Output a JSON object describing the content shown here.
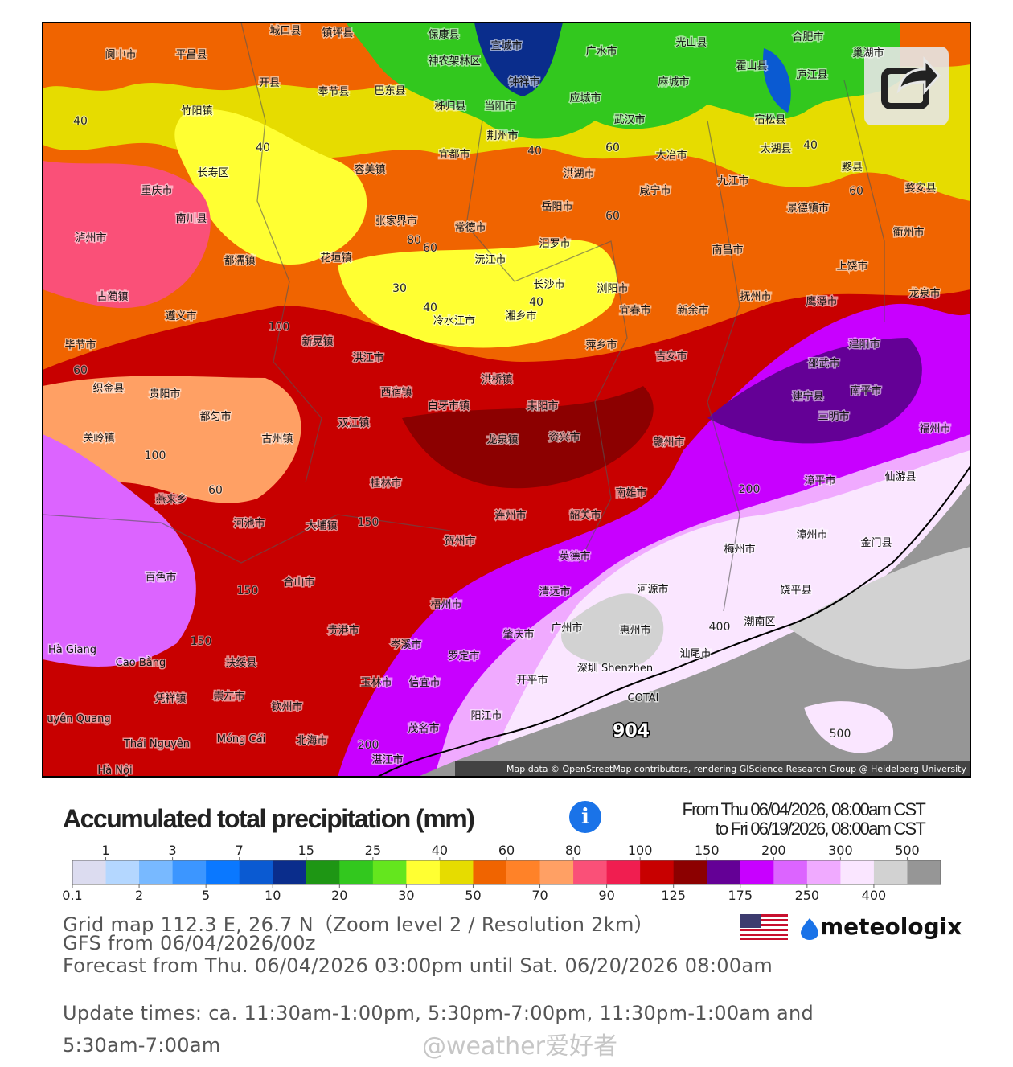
{
  "map": {
    "cities": [
      "城口县",
      "镇坪县",
      "保康县",
      "宜城市",
      "广水市",
      "光山县",
      "合肥市",
      "巢湖市",
      "阆中市",
      "平昌县",
      "开县",
      "奉节县",
      "巴东县",
      "神农架林区",
      "钟祥市",
      "麻城市",
      "霍山县",
      "庐江县",
      "竹阳镇",
      "秭归县",
      "当阳市",
      "应城市",
      "武汉市",
      "宿松县",
      "长寿区",
      "重庆市",
      "容美镇",
      "宜都市",
      "荆州市",
      "洪湖市",
      "咸宁市",
      "大冶市",
      "九江市",
      "太湖县",
      "黟县",
      "婺安县",
      "南川县",
      "张家界市",
      "常德市",
      "岳阳市",
      "景德镇市",
      "衢州市",
      "泸州市",
      "都濡镇",
      "花垣镇",
      "沅江市",
      "汨罗市",
      "南昌市",
      "上饶市",
      "古蔺镇",
      "遵义市",
      "长沙市",
      "浏阳市",
      "宜春市",
      "新余市",
      "抚州市",
      "鹰潭市",
      "龙泉市",
      "冷水江市",
      "湘乡市",
      "新晃镇",
      "萍乡市",
      "吉安市",
      "建阳市",
      "毕节市",
      "洪江市",
      "邵武市",
      "织金县",
      "贵阳市",
      "洪桥镇",
      "西宿镇",
      "白牙市镇",
      "耒阳市",
      "建宁县",
      "南平市",
      "三明市",
      "福州市",
      "都匀市",
      "双江镇",
      "龙泉镇",
      "资兴市",
      "赣州市",
      "关岭镇",
      "古州镇",
      "桂林市",
      "漳平市",
      "仙游县",
      "燕来乡",
      "河池市",
      "大埔镇",
      "连州市",
      "韶关市",
      "南雄市",
      "贺州市",
      "梅州市",
      "漳州市",
      "金门县",
      "英德市",
      "百色市",
      "合山市",
      "清远市",
      "河源市",
      "饶平县",
      "梧州市",
      "潮南区",
      "贵港市",
      "肇庆市",
      "广州市",
      "惠州市",
      "岑溪市",
      "Hà Giang",
      "Cao Bằng",
      "扶绥县",
      "罗定市",
      "深圳 Shenzhen",
      "汕尾市",
      "玉林市",
      "信宜市",
      "开平市",
      "凭祥镇",
      "崇左市",
      "钦州市",
      "COTAI",
      "uyên Quang",
      "阳江市",
      "茂名市",
      "Thái Nguyên",
      "Móng Cái",
      "北海市",
      "湛江市",
      "Hà Nội"
    ],
    "contour_labels": [
      40,
      40,
      40,
      40,
      60,
      60,
      60,
      80,
      60,
      30,
      40,
      40,
      100,
      60,
      100,
      60,
      150,
      150,
      150,
      200,
      400,
      200,
      500,
      904
    ],
    "attribution": "Map data © OpenStreetMap contributors, rendering GIScience Research Group @ Heidelberg University"
  },
  "legend": {
    "title": "Accumulated total precipitation (mm)",
    "time_from": "From Thu 06/04/2026, 08:00am CST",
    "time_to": "to Fri 06/19/2026, 08:00am CST",
    "thresholds": [
      0.1,
      1,
      2,
      3,
      5,
      7,
      10,
      15,
      20,
      25,
      30,
      40,
      50,
      60,
      70,
      80,
      90,
      100,
      125,
      150,
      175,
      200,
      250,
      300,
      400,
      500
    ],
    "colors": [
      "#dcdcf0",
      "#b4d7ff",
      "#78b9ff",
      "#3c96ff",
      "#0a78ff",
      "#0a5ad2",
      "#0a2d8c",
      "#1e9614",
      "#32c81e",
      "#64e61e",
      "#ffff32",
      "#e6dc00",
      "#f06400",
      "#ff8228",
      "#ffa064",
      "#fa5078",
      "#f01e50",
      "#c80000",
      "#8c0000",
      "#640096",
      "#c800ff",
      "#dc64ff",
      "#f0aaff",
      "#fae6ff",
      "#d2d2d2",
      "#969696"
    ]
  },
  "info": {
    "grid": "Grid map 112.3 E, 26.7 N（Zoom level 2 / Resolution 2km）",
    "model": "GFS from 06/04/2026/00z",
    "forecast": "Forecast from Thu. 06/04/2026 03:00pm until Sat. 06/20/2026 08:00am",
    "update": "Update times: ca. 11:30am-1:00pm, 5:30pm-7:00pm, 11:30pm-1:00am and 5:30am-7:00am"
  },
  "branding": {
    "logo": "meteologix",
    "watermark": "@weather爱好者"
  }
}
